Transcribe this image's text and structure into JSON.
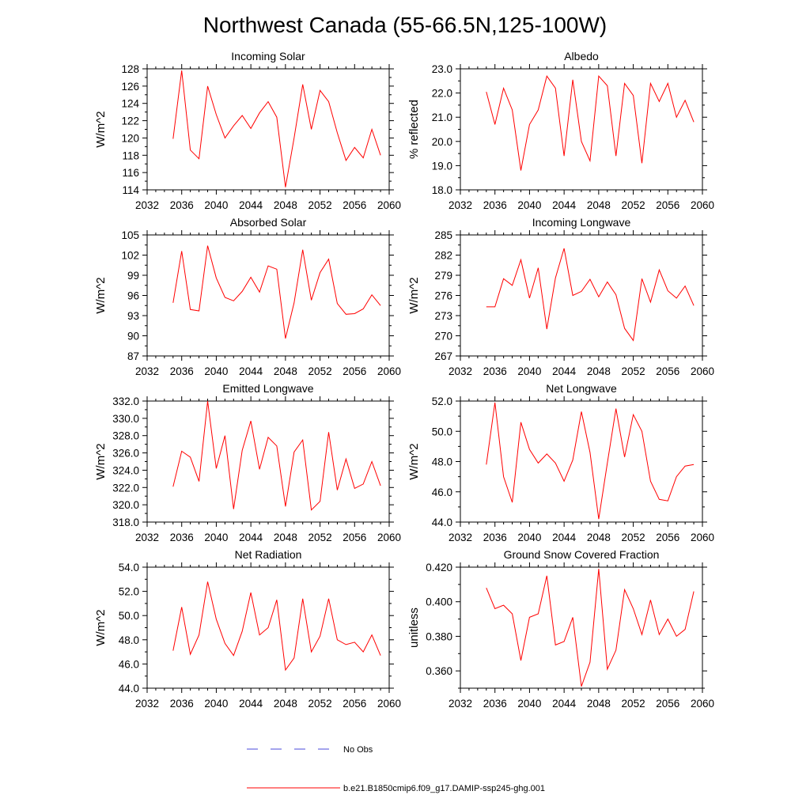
{
  "figure": {
    "title": "Northwest Canada (55-66.5N,125-100W)"
  },
  "legend": {
    "entries": [
      {
        "label": "No Obs",
        "color": "#4a4adb",
        "dash": "dashed"
      },
      {
        "label": "b.e21.B1850cmip6.f09_g17.DAMIP-ssp245-ghg.001",
        "color": "#ff0000",
        "dash": "solid"
      }
    ]
  },
  "chart_data": [
    {
      "type": "line",
      "title": "Incoming Solar",
      "ylabel": "W/m^2",
      "xlim": [
        2032,
        2060
      ],
      "ylim": [
        114,
        128
      ],
      "xticks": [
        2032,
        2036,
        2040,
        2044,
        2048,
        2052,
        2056,
        2060
      ],
      "xtick_labels": [
        "2032",
        "2036",
        "2040",
        "2044",
        "2048",
        "2052",
        "2056",
        "2060"
      ],
      "yticks": [
        114,
        116,
        118,
        120,
        122,
        124,
        126,
        128
      ],
      "ytick_labels": [
        "114",
        "116",
        "118",
        "120",
        "122",
        "124",
        "126",
        "128"
      ],
      "x": [
        2035,
        2036,
        2037,
        2038,
        2039,
        2040,
        2041,
        2042,
        2043,
        2044,
        2045,
        2046,
        2047,
        2048,
        2049,
        2050,
        2051,
        2052,
        2053,
        2054,
        2055,
        2056,
        2057,
        2058,
        2059
      ],
      "series": [
        {
          "color": "#ff0000",
          "values": [
            119.9,
            127.8,
            118.6,
            117.6,
            126.0,
            122.7,
            120.0,
            121.4,
            122.6,
            121.1,
            122.9,
            124.2,
            122.4,
            114.3,
            120.0,
            126.2,
            121.0,
            125.5,
            124.2,
            120.6,
            117.4,
            118.9,
            117.7,
            121.0,
            118.0
          ]
        }
      ]
    },
    {
      "type": "line",
      "title": "Albedo",
      "ylabel": "% reflected",
      "xlim": [
        2032,
        2060
      ],
      "ylim": [
        18,
        23
      ],
      "xticks": [
        2032,
        2036,
        2040,
        2044,
        2048,
        2052,
        2056,
        2060
      ],
      "xtick_labels": [
        "2032",
        "2036",
        "2040",
        "2044",
        "2048",
        "2052",
        "2056",
        "2060"
      ],
      "yticks": [
        18,
        19,
        20,
        21,
        22,
        23
      ],
      "ytick_labels": [
        "18.0",
        "19.0",
        "20.0",
        "21.0",
        "22.0",
        "23.0"
      ],
      "x": [
        2035,
        2036,
        2037,
        2038,
        2039,
        2040,
        2041,
        2042,
        2043,
        2044,
        2045,
        2046,
        2047,
        2048,
        2049,
        2050,
        2051,
        2052,
        2053,
        2054,
        2055,
        2056,
        2057,
        2058,
        2059
      ],
      "series": [
        {
          "color": "#ff0000",
          "values": [
            22.05,
            20.7,
            22.2,
            21.3,
            18.8,
            20.7,
            21.3,
            22.7,
            22.2,
            19.4,
            22.55,
            20.0,
            19.2,
            22.7,
            22.3,
            19.4,
            22.4,
            21.9,
            19.1,
            22.4,
            21.65,
            22.4,
            21.0,
            21.7,
            20.8
          ]
        }
      ]
    },
    {
      "type": "line",
      "title": "Absorbed Solar",
      "ylabel": "W/m^2",
      "xlim": [
        2032,
        2060
      ],
      "ylim": [
        87,
        105
      ],
      "xticks": [
        2032,
        2036,
        2040,
        2044,
        2048,
        2052,
        2056,
        2060
      ],
      "xtick_labels": [
        "2032",
        "2036",
        "2040",
        "2044",
        "2048",
        "2052",
        "2056",
        "2060"
      ],
      "yticks": [
        87,
        90,
        93,
        96,
        99,
        102,
        105
      ],
      "ytick_labels": [
        "87",
        "90",
        "93",
        "96",
        "99",
        "102",
        "105"
      ],
      "x": [
        2035,
        2036,
        2037,
        2038,
        2039,
        2040,
        2041,
        2042,
        2043,
        2044,
        2045,
        2046,
        2047,
        2048,
        2049,
        2050,
        2051,
        2052,
        2053,
        2054,
        2055,
        2056,
        2057,
        2058,
        2059
      ],
      "series": [
        {
          "color": "#ff0000",
          "values": [
            94.9,
            102.6,
            93.9,
            93.7,
            103.4,
            98.6,
            95.7,
            95.2,
            96.6,
            98.7,
            96.5,
            100.4,
            99.9,
            89.6,
            94.9,
            102.8,
            95.3,
            99.4,
            101.4,
            94.8,
            93.2,
            93.3,
            94.0,
            96.1,
            94.5
          ]
        }
      ]
    },
    {
      "type": "line",
      "title": "Incoming Longwave",
      "ylabel": "W/m^2",
      "xlim": [
        2032,
        2060
      ],
      "ylim": [
        267,
        285
      ],
      "xticks": [
        2032,
        2036,
        2040,
        2044,
        2048,
        2052,
        2056,
        2060
      ],
      "xtick_labels": [
        "2032",
        "2036",
        "2040",
        "2044",
        "2048",
        "2052",
        "2056",
        "2060"
      ],
      "yticks": [
        267,
        270,
        273,
        276,
        279,
        282,
        285
      ],
      "ytick_labels": [
        "267",
        "270",
        "273",
        "276",
        "279",
        "282",
        "285"
      ],
      "x": [
        2035,
        2036,
        2037,
        2038,
        2039,
        2040,
        2041,
        2042,
        2043,
        2044,
        2045,
        2046,
        2047,
        2048,
        2049,
        2050,
        2051,
        2052,
        2053,
        2054,
        2055,
        2056,
        2057,
        2058,
        2059
      ],
      "series": [
        {
          "color": "#ff0000",
          "values": [
            274.3,
            274.3,
            278.5,
            277.5,
            281.3,
            275.6,
            280.1,
            271.0,
            278.6,
            283.0,
            276.0,
            276.6,
            278.4,
            275.8,
            278.0,
            276.1,
            271.1,
            269.3,
            278.5,
            275.0,
            279.8,
            276.7,
            275.6,
            277.4,
            274.5
          ]
        }
      ]
    },
    {
      "type": "line",
      "title": "Emitted Longwave",
      "ylabel": "W/m^2",
      "xlim": [
        2032,
        2060
      ],
      "ylim": [
        318,
        332
      ],
      "xticks": [
        2032,
        2036,
        2040,
        2044,
        2048,
        2052,
        2056,
        2060
      ],
      "xtick_labels": [
        "2032",
        "2036",
        "2040",
        "2044",
        "2048",
        "2052",
        "2056",
        "2060"
      ],
      "yticks": [
        318,
        320,
        322,
        324,
        326,
        328,
        330,
        332
      ],
      "ytick_labels": [
        "318.0",
        "320.0",
        "322.0",
        "324.0",
        "326.0",
        "328.0",
        "330.0",
        "332.0"
      ],
      "x": [
        2035,
        2036,
        2037,
        2038,
        2039,
        2040,
        2041,
        2042,
        2043,
        2044,
        2045,
        2046,
        2047,
        2048,
        2049,
        2050,
        2051,
        2052,
        2053,
        2054,
        2055,
        2056,
        2057,
        2058,
        2059
      ],
      "series": [
        {
          "color": "#ff0000",
          "values": [
            322.1,
            326.2,
            325.5,
            322.7,
            332.0,
            324.2,
            328.0,
            319.5,
            326.3,
            329.7,
            324.1,
            327.8,
            326.8,
            319.8,
            326.1,
            327.5,
            319.4,
            320.4,
            328.4,
            321.7,
            325.3,
            321.9,
            322.4,
            325.0,
            322.2
          ]
        }
      ]
    },
    {
      "type": "line",
      "title": "Net Longwave",
      "ylabel": "W/m^2",
      "xlim": [
        2032,
        2060
      ],
      "ylim": [
        44,
        52
      ],
      "xticks": [
        2032,
        2036,
        2040,
        2044,
        2048,
        2052,
        2056,
        2060
      ],
      "xtick_labels": [
        "2032",
        "2036",
        "2040",
        "2044",
        "2048",
        "2052",
        "2056",
        "2060"
      ],
      "yticks": [
        44,
        46,
        48,
        50,
        52
      ],
      "ytick_labels": [
        "44.0",
        "46.0",
        "48.0",
        "50.0",
        "52.0"
      ],
      "x": [
        2035,
        2036,
        2037,
        2038,
        2039,
        2040,
        2041,
        2042,
        2043,
        2044,
        2045,
        2046,
        2047,
        2048,
        2049,
        2050,
        2051,
        2052,
        2053,
        2054,
        2055,
        2056,
        2057,
        2058,
        2059
      ],
      "series": [
        {
          "color": "#ff0000",
          "values": [
            47.8,
            51.9,
            47.0,
            45.3,
            50.6,
            48.8,
            47.9,
            48.5,
            47.9,
            46.7,
            48.1,
            51.3,
            48.6,
            44.2,
            47.9,
            51.5,
            48.3,
            51.1,
            50.0,
            46.7,
            45.5,
            45.4,
            47.0,
            47.7,
            47.8
          ]
        }
      ]
    },
    {
      "type": "line",
      "title": "Net Radiation",
      "ylabel": "W/m^2",
      "xlim": [
        2032,
        2060
      ],
      "ylim": [
        44,
        54
      ],
      "xticks": [
        2032,
        2036,
        2040,
        2044,
        2048,
        2052,
        2056,
        2060
      ],
      "xtick_labels": [
        "2032",
        "2036",
        "2040",
        "2044",
        "2048",
        "2052",
        "2056",
        "2060"
      ],
      "yticks": [
        44,
        46,
        48,
        50,
        52,
        54
      ],
      "ytick_labels": [
        "44.0",
        "46.0",
        "48.0",
        "50.0",
        "52.0",
        "54.0"
      ],
      "x": [
        2035,
        2036,
        2037,
        2038,
        2039,
        2040,
        2041,
        2042,
        2043,
        2044,
        2045,
        2046,
        2047,
        2048,
        2049,
        2050,
        2051,
        2052,
        2053,
        2054,
        2055,
        2056,
        2057,
        2058,
        2059
      ],
      "series": [
        {
          "color": "#ff0000",
          "values": [
            47.1,
            50.7,
            46.8,
            48.4,
            52.8,
            49.7,
            47.7,
            46.7,
            48.7,
            51.9,
            48.4,
            49.0,
            51.3,
            45.5,
            46.5,
            51.4,
            47.0,
            48.3,
            51.4,
            48.0,
            47.6,
            47.8,
            47.0,
            48.4,
            46.7
          ]
        }
      ]
    },
    {
      "type": "line",
      "title": "Ground Snow Covered Fraction",
      "ylabel": "unitless",
      "xlim": [
        2032,
        2060
      ],
      "ylim": [
        0.35,
        0.42
      ],
      "xticks": [
        2032,
        2036,
        2040,
        2044,
        2048,
        2052,
        2056,
        2060
      ],
      "xtick_labels": [
        "2032",
        "2036",
        "2040",
        "2044",
        "2048",
        "2052",
        "2056",
        "2060"
      ],
      "yticks": [
        0.36,
        0.38,
        0.4,
        0.42
      ],
      "ytick_labels": [
        "0.360",
        "0.380",
        "0.400",
        "0.420"
      ],
      "x": [
        2035,
        2036,
        2037,
        2038,
        2039,
        2040,
        2041,
        2042,
        2043,
        2044,
        2045,
        2046,
        2047,
        2048,
        2049,
        2050,
        2051,
        2052,
        2053,
        2054,
        2055,
        2056,
        2057,
        2058,
        2059
      ],
      "series": [
        {
          "color": "#ff0000",
          "values": [
            0.408,
            0.396,
            0.398,
            0.393,
            0.366,
            0.391,
            0.393,
            0.415,
            0.375,
            0.377,
            0.391,
            0.351,
            0.365,
            0.419,
            0.361,
            0.372,
            0.407,
            0.396,
            0.381,
            0.401,
            0.381,
            0.39,
            0.38,
            0.384,
            0.406
          ]
        }
      ]
    }
  ]
}
